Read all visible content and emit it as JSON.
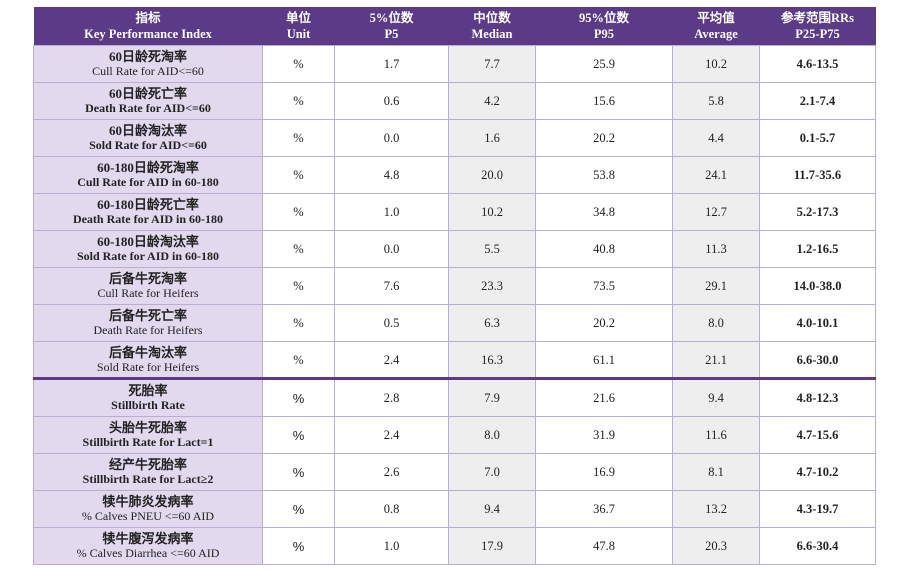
{
  "header": {
    "kpi_zh": "指标",
    "kpi_en": "Key Performance Index",
    "unit_zh": "单位",
    "unit_en": "Unit",
    "p5_zh": "5%位数",
    "p5_en": "P5",
    "median_zh": "中位数",
    "median_en": "Median",
    "p95_zh": "95%位数",
    "p95_en": "P95",
    "avg_zh": "平均值",
    "avg_en": "Average",
    "rr_zh": "参考范围RRs",
    "rr_en": "P25-P75"
  },
  "rows1": [
    {
      "zh": "60日龄死淘率",
      "en": "Cull Rate for AID<=60",
      "unit": "%",
      "p5": "1.7",
      "median": "7.7",
      "p95": "25.9",
      "avg": "10.2",
      "rr": "4.6-13.5"
    },
    {
      "zh": "60日龄死亡率",
      "en": "Death Rate for AID<=60",
      "unit": "%",
      "p5": "0.6",
      "median": "4.2",
      "p95": "15.6",
      "avg": "5.8",
      "rr": "2.1-7.4"
    },
    {
      "zh": "60日龄淘汰率",
      "en": "Sold Rate for AID<=60",
      "unit": "%",
      "p5": "0.0",
      "median": "1.6",
      "p95": "20.2",
      "avg": "4.4",
      "rr": "0.1-5.7"
    },
    {
      "zh": "60-180日龄死淘率",
      "en": "Cull Rate for AID in 60-180",
      "unit": "%",
      "p5": "4.8",
      "median": "20.0",
      "p95": "53.8",
      "avg": "24.1",
      "rr": "11.7-35.6"
    },
    {
      "zh": "60-180日龄死亡率",
      "en": "Death Rate for AID in 60-180",
      "unit": "%",
      "p5": "1.0",
      "median": "10.2",
      "p95": "34.8",
      "avg": "12.7",
      "rr": "5.2-17.3"
    },
    {
      "zh": "60-180日龄淘汰率",
      "en": "Sold Rate for AID in 60-180",
      "unit": "%",
      "p5": "0.0",
      "median": "5.5",
      "p95": "40.8",
      "avg": "11.3",
      "rr": "1.2-16.5"
    },
    {
      "zh": "后备牛死淘率",
      "en": "Cull Rate for Heifers",
      "unit": "%",
      "p5": "7.6",
      "median": "23.3",
      "p95": "73.5",
      "avg": "29.1",
      "rr": "14.0-38.0"
    },
    {
      "zh": "后备牛死亡率",
      "en": "Death Rate for Heifers",
      "unit": "%",
      "p5": "0.5",
      "median": "6.3",
      "p95": "20.2",
      "avg": "8.0",
      "rr": "4.0-10.1"
    },
    {
      "zh": "后备牛淘汰率",
      "en": "Sold Rate for Heifers",
      "unit": "%",
      "p5": "2.4",
      "median": "16.3",
      "p95": "61.1",
      "avg": "21.1",
      "rr": "6.6-30.0"
    }
  ],
  "rows2": [
    {
      "zh": "死胎率",
      "en": "Stillbirth Rate",
      "unit": "%",
      "p5": "2.8",
      "median": "7.9",
      "p95": "21.6",
      "avg": "9.4",
      "rr": "4.8-12.3"
    },
    {
      "zh": "头胎牛死胎率",
      "en": "Stillbirth Rate for Lact=1",
      "unit": "%",
      "p5": "2.4",
      "median": "8.0",
      "p95": "31.9",
      "avg": "11.6",
      "rr": "4.7-15.6"
    },
    {
      "zh": "经产牛死胎率",
      "en": "Stillbirth Rate for Lact≥2",
      "unit": "%",
      "p5": "2.6",
      "median": "7.0",
      "p95": "16.9",
      "avg": "8.1",
      "rr": "4.7-10.2"
    },
    {
      "zh": "犊牛肺炎发病率",
      "en": "% Calves PNEU <=60 AID",
      "unit": "%",
      "p5": "0.8",
      "median": "9.4",
      "p95": "36.7",
      "avg": "13.2",
      "rr": "4.3-19.7"
    },
    {
      "zh": "犊牛腹泻发病率",
      "en": "% Calves Diarrhea <=60 AID",
      "unit": "%",
      "p5": "1.0",
      "median": "17.9",
      "p95": "47.8",
      "avg": "20.3",
      "rr": "6.6-30.4"
    }
  ]
}
